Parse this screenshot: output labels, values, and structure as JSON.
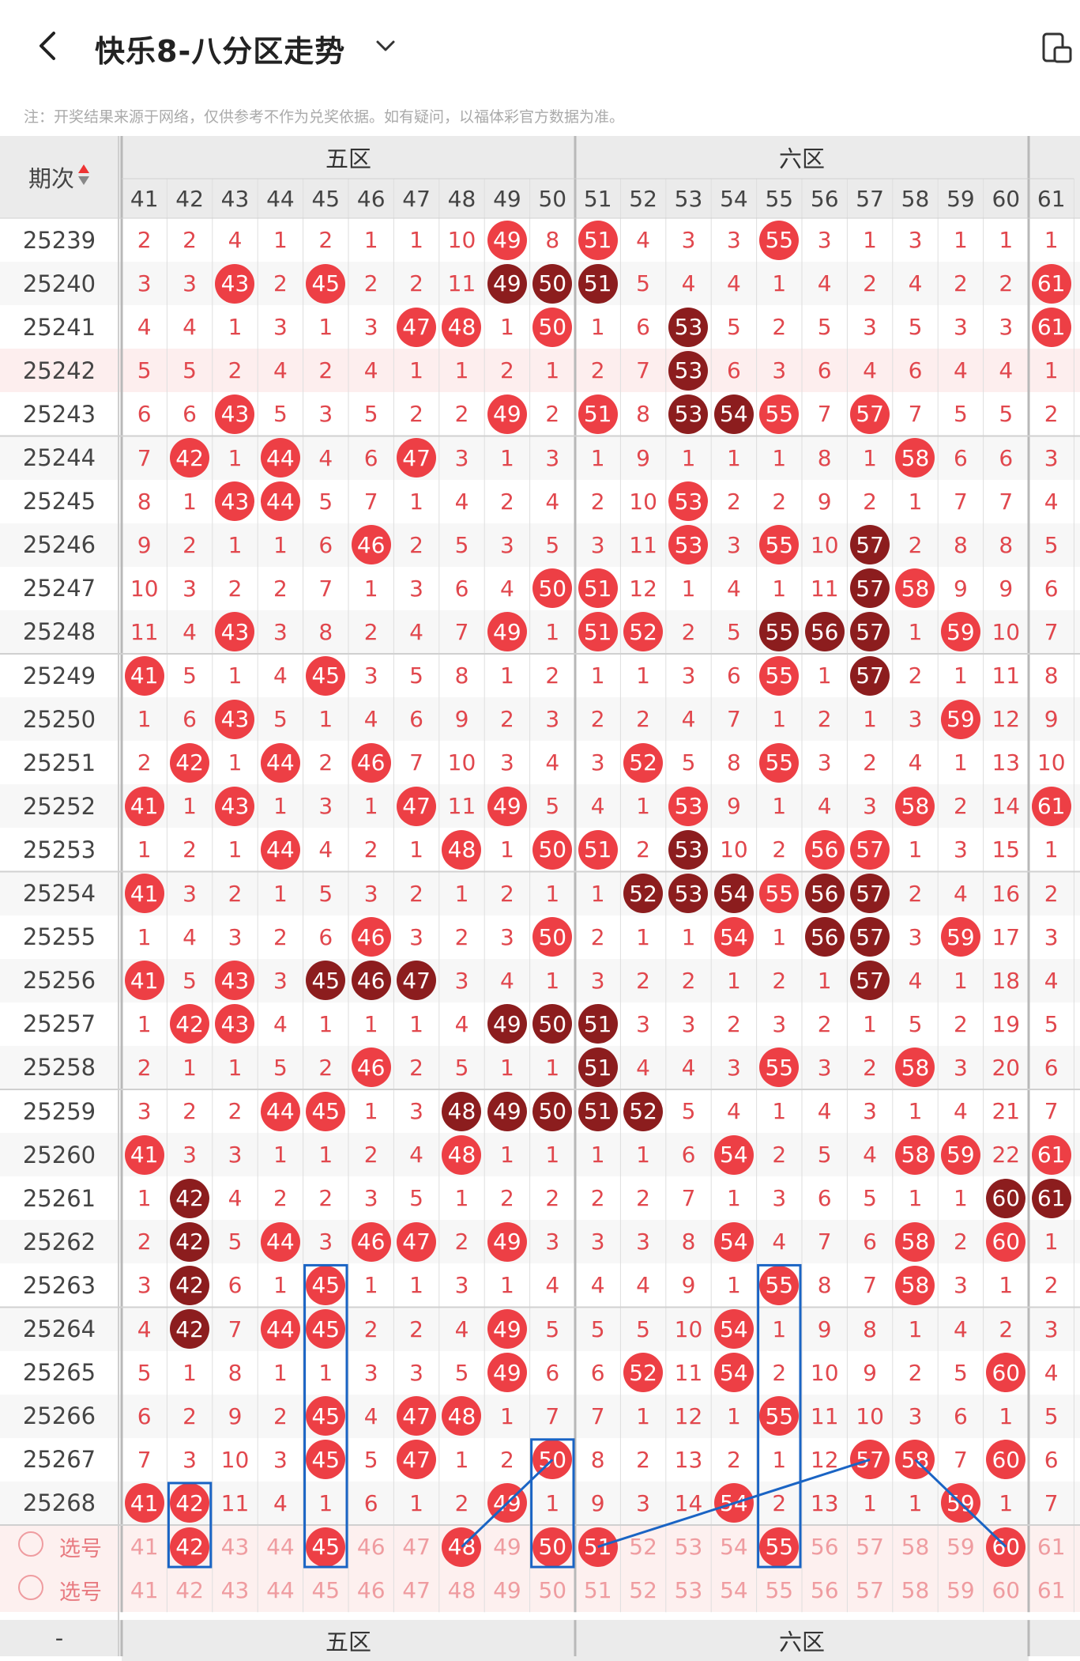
{
  "header": {
    "title": "快乐8-八分区走势",
    "note": "注：开奖结果来源于网络，仅供参考不作为兑奖依据。如有疑问，以福体彩官方数据为准。"
  },
  "table": {
    "period_label": "期次",
    "zones": [
      "五区",
      "六区"
    ],
    "columns": [
      "41",
      "42",
      "43",
      "44",
      "45",
      "46",
      "47",
      "48",
      "49",
      "50",
      "51",
      "52",
      "53",
      "54",
      "55",
      "56",
      "57",
      "58",
      "59",
      "60",
      "61"
    ],
    "rows": [
      {
        "period": "25239",
        "cells": [
          "2",
          "2",
          "4",
          "1",
          "2",
          "1",
          "1",
          "10",
          "49",
          "8",
          "51",
          "4",
          "3",
          "3",
          "55",
          "3",
          "1",
          "3",
          "1",
          "1",
          "1"
        ]
      },
      {
        "period": "25240",
        "cells": [
          "3",
          "3",
          "43",
          "2",
          "45",
          "2",
          "2",
          "11",
          "49",
          "50",
          "51",
          "5",
          "4",
          "4",
          "1",
          "4",
          "2",
          "4",
          "2",
          "2",
          "61"
        ]
      },
      {
        "period": "25241",
        "cells": [
          "4",
          "4",
          "1",
          "3",
          "1",
          "3",
          "47",
          "48",
          "1",
          "50",
          "1",
          "6",
          "53",
          "5",
          "2",
          "5",
          "3",
          "5",
          "3",
          "3",
          "61"
        ]
      },
      {
        "period": "25242",
        "cells": [
          "5",
          "5",
          "2",
          "4",
          "2",
          "4",
          "1",
          "1",
          "2",
          "1",
          "2",
          "7",
          "53",
          "6",
          "3",
          "6",
          "4",
          "6",
          "4",
          "4",
          "1"
        ]
      },
      {
        "period": "25243",
        "cells": [
          "6",
          "6",
          "43",
          "5",
          "3",
          "5",
          "2",
          "2",
          "49",
          "2",
          "51",
          "8",
          "53",
          "54",
          "55",
          "7",
          "57",
          "7",
          "5",
          "5",
          "2"
        ]
      },
      {
        "period": "25244",
        "cells": [
          "7",
          "42",
          "1",
          "44",
          "4",
          "6",
          "47",
          "3",
          "1",
          "3",
          "1",
          "9",
          "1",
          "1",
          "1",
          "8",
          "1",
          "58",
          "6",
          "6",
          "3"
        ]
      },
      {
        "period": "25245",
        "cells": [
          "8",
          "1",
          "43",
          "44",
          "5",
          "7",
          "1",
          "4",
          "2",
          "4",
          "2",
          "10",
          "53",
          "2",
          "2",
          "9",
          "2",
          "1",
          "7",
          "7",
          "4"
        ]
      },
      {
        "period": "25246",
        "cells": [
          "9",
          "2",
          "1",
          "1",
          "6",
          "46",
          "2",
          "5",
          "3",
          "5",
          "3",
          "11",
          "53",
          "3",
          "55",
          "10",
          "57",
          "2",
          "8",
          "8",
          "5"
        ]
      },
      {
        "period": "25247",
        "cells": [
          "10",
          "3",
          "2",
          "2",
          "7",
          "1",
          "3",
          "6",
          "4",
          "50",
          "51",
          "12",
          "1",
          "4",
          "1",
          "11",
          "57",
          "58",
          "9",
          "9",
          "6"
        ]
      },
      {
        "period": "25248",
        "cells": [
          "11",
          "4",
          "43",
          "3",
          "8",
          "2",
          "4",
          "7",
          "49",
          "1",
          "51",
          "52",
          "2",
          "5",
          "55",
          "56",
          "57",
          "1",
          "59",
          "10",
          "7"
        ]
      },
      {
        "period": "25249",
        "cells": [
          "41",
          "5",
          "1",
          "4",
          "45",
          "3",
          "5",
          "8",
          "1",
          "2",
          "1",
          "1",
          "3",
          "6",
          "55",
          "1",
          "57",
          "2",
          "1",
          "11",
          "8"
        ]
      },
      {
        "period": "25250",
        "cells": [
          "1",
          "6",
          "43",
          "5",
          "1",
          "4",
          "6",
          "9",
          "2",
          "3",
          "2",
          "2",
          "4",
          "7",
          "1",
          "2",
          "1",
          "3",
          "59",
          "12",
          "9"
        ]
      },
      {
        "period": "25251",
        "cells": [
          "2",
          "42",
          "1",
          "44",
          "2",
          "46",
          "7",
          "10",
          "3",
          "4",
          "3",
          "52",
          "5",
          "8",
          "55",
          "3",
          "2",
          "4",
          "1",
          "13",
          "10"
        ]
      },
      {
        "period": "25252",
        "cells": [
          "41",
          "1",
          "43",
          "1",
          "3",
          "1",
          "47",
          "11",
          "49",
          "5",
          "4",
          "1",
          "53",
          "9",
          "1",
          "4",
          "3",
          "58",
          "2",
          "14",
          "61"
        ]
      },
      {
        "period": "25253",
        "cells": [
          "1",
          "2",
          "1",
          "44",
          "4",
          "2",
          "1",
          "48",
          "1",
          "50",
          "51",
          "2",
          "53",
          "10",
          "2",
          "56",
          "57",
          "1",
          "3",
          "15",
          "1"
        ]
      },
      {
        "period": "25254",
        "cells": [
          "41",
          "3",
          "2",
          "1",
          "5",
          "3",
          "2",
          "1",
          "2",
          "1",
          "1",
          "52",
          "53",
          "54",
          "55",
          "56",
          "57",
          "2",
          "4",
          "16",
          "2"
        ]
      },
      {
        "period": "25255",
        "cells": [
          "1",
          "4",
          "3",
          "2",
          "6",
          "46",
          "3",
          "2",
          "3",
          "50",
          "2",
          "1",
          "1",
          "54",
          "1",
          "56",
          "57",
          "3",
          "59",
          "17",
          "3"
        ]
      },
      {
        "period": "25256",
        "cells": [
          "41",
          "5",
          "43",
          "3",
          "45",
          "46",
          "47",
          "3",
          "4",
          "1",
          "3",
          "2",
          "2",
          "1",
          "2",
          "1",
          "57",
          "4",
          "1",
          "18",
          "4"
        ]
      },
      {
        "period": "25257",
        "cells": [
          "1",
          "42",
          "43",
          "4",
          "1",
          "1",
          "1",
          "4",
          "49",
          "50",
          "51",
          "3",
          "3",
          "2",
          "3",
          "2",
          "1",
          "5",
          "2",
          "19",
          "5"
        ]
      },
      {
        "period": "25258",
        "cells": [
          "2",
          "1",
          "1",
          "5",
          "2",
          "46",
          "2",
          "5",
          "1",
          "1",
          "51",
          "4",
          "4",
          "3",
          "55",
          "3",
          "2",
          "58",
          "3",
          "20",
          "6"
        ]
      },
      {
        "period": "25259",
        "cells": [
          "3",
          "2",
          "2",
          "44",
          "45",
          "1",
          "3",
          "48",
          "49",
          "50",
          "51",
          "52",
          "5",
          "4",
          "1",
          "4",
          "3",
          "1",
          "4",
          "21",
          "7"
        ]
      },
      {
        "period": "25260",
        "cells": [
          "41",
          "3",
          "3",
          "1",
          "1",
          "2",
          "4",
          "48",
          "1",
          "1",
          "1",
          "1",
          "6",
          "54",
          "2",
          "5",
          "4",
          "58",
          "59",
          "22",
          "61"
        ]
      },
      {
        "period": "25261",
        "cells": [
          "1",
          "42",
          "4",
          "2",
          "2",
          "3",
          "5",
          "1",
          "2",
          "2",
          "2",
          "2",
          "7",
          "1",
          "3",
          "6",
          "5",
          "1",
          "1",
          "60",
          "61"
        ]
      },
      {
        "period": "25262",
        "cells": [
          "2",
          "42",
          "5",
          "44",
          "3",
          "46",
          "47",
          "2",
          "49",
          "3",
          "3",
          "3",
          "8",
          "54",
          "4",
          "7",
          "6",
          "58",
          "2",
          "60",
          "1"
        ]
      },
      {
        "period": "25263",
        "cells": [
          "3",
          "42",
          "6",
          "1",
          "45",
          "1",
          "1",
          "3",
          "1",
          "4",
          "4",
          "4",
          "9",
          "1",
          "55",
          "8",
          "7",
          "58",
          "3",
          "1",
          "2"
        ]
      },
      {
        "period": "25264",
        "cells": [
          "4",
          "42",
          "7",
          "44",
          "45",
          "2",
          "2",
          "4",
          "49",
          "5",
          "5",
          "5",
          "10",
          "54",
          "1",
          "9",
          "8",
          "1",
          "4",
          "2",
          "3"
        ]
      },
      {
        "period": "25265",
        "cells": [
          "5",
          "1",
          "8",
          "1",
          "1",
          "3",
          "3",
          "5",
          "49",
          "6",
          "6",
          "52",
          "11",
          "54",
          "2",
          "10",
          "9",
          "2",
          "5",
          "60",
          "4"
        ]
      },
      {
        "period": "25266",
        "cells": [
          "6",
          "2",
          "9",
          "2",
          "45",
          "4",
          "47",
          "48",
          "1",
          "7",
          "7",
          "1",
          "12",
          "1",
          "55",
          "11",
          "10",
          "3",
          "6",
          "1",
          "5"
        ]
      },
      {
        "period": "25267",
        "cells": [
          "7",
          "3",
          "10",
          "3",
          "45",
          "5",
          "47",
          "1",
          "2",
          "50",
          "8",
          "2",
          "13",
          "2",
          "1",
          "12",
          "57",
          "58",
          "7",
          "60",
          "6"
        ]
      },
      {
        "period": "25268",
        "cells": [
          "41",
          "42",
          "11",
          "4",
          "1",
          "6",
          "1",
          "2",
          "49",
          "1",
          "9",
          "3",
          "14",
          "54",
          "2",
          "13",
          "1",
          "1",
          "59",
          "1",
          "7"
        ]
      }
    ],
    "dark_balls": [
      [
        "25240",
        "49"
      ],
      [
        "25240",
        "50"
      ],
      [
        "25240",
        "51"
      ],
      [
        "25241",
        "53"
      ],
      [
        "25242",
        "53"
      ],
      [
        "25243",
        "53"
      ],
      [
        "25243",
        "54"
      ],
      [
        "25246",
        "57"
      ],
      [
        "25247",
        "57"
      ],
      [
        "25248",
        "55"
      ],
      [
        "25248",
        "56"
      ],
      [
        "25248",
        "57"
      ],
      [
        "25249",
        "57"
      ],
      [
        "25253",
        "53"
      ],
      [
        "25254",
        "52"
      ],
      [
        "25254",
        "53"
      ],
      [
        "25254",
        "54"
      ],
      [
        "25254",
        "56"
      ],
      [
        "25254",
        "57"
      ],
      [
        "25255",
        "56"
      ],
      [
        "25255",
        "57"
      ],
      [
        "25256",
        "45"
      ],
      [
        "25256",
        "46"
      ],
      [
        "25256",
        "47"
      ],
      [
        "25256",
        "57"
      ],
      [
        "25257",
        "49"
      ],
      [
        "25257",
        "50"
      ],
      [
        "25257",
        "51"
      ],
      [
        "25258",
        "51"
      ],
      [
        "25259",
        "48"
      ],
      [
        "25259",
        "49"
      ],
      [
        "25259",
        "50"
      ],
      [
        "25259",
        "51"
      ],
      [
        "25259",
        "52"
      ],
      [
        "25261",
        "42"
      ],
      [
        "25261",
        "60"
      ],
      [
        "25261",
        "61"
      ],
      [
        "25262",
        "42"
      ],
      [
        "25263",
        "42"
      ],
      [
        "25264",
        "42"
      ]
    ],
    "select_label": "选号",
    "selected": [
      "42",
      "45",
      "48",
      "50",
      "51",
      "55",
      "60"
    ],
    "select_row2": [
      "41",
      "42",
      "43",
      "44",
      "45",
      "46",
      "47",
      "48",
      "49",
      "50",
      "51",
      "52",
      "53",
      "54",
      "55",
      "56",
      "57",
      "58",
      "59",
      "60",
      "61"
    ],
    "footer_left": "-"
  },
  "colors": {
    "ball": "#ed3f45",
    "ball_dark": "#8c1d1e",
    "number": "#e1474d",
    "annotation": "#1a64c4"
  }
}
